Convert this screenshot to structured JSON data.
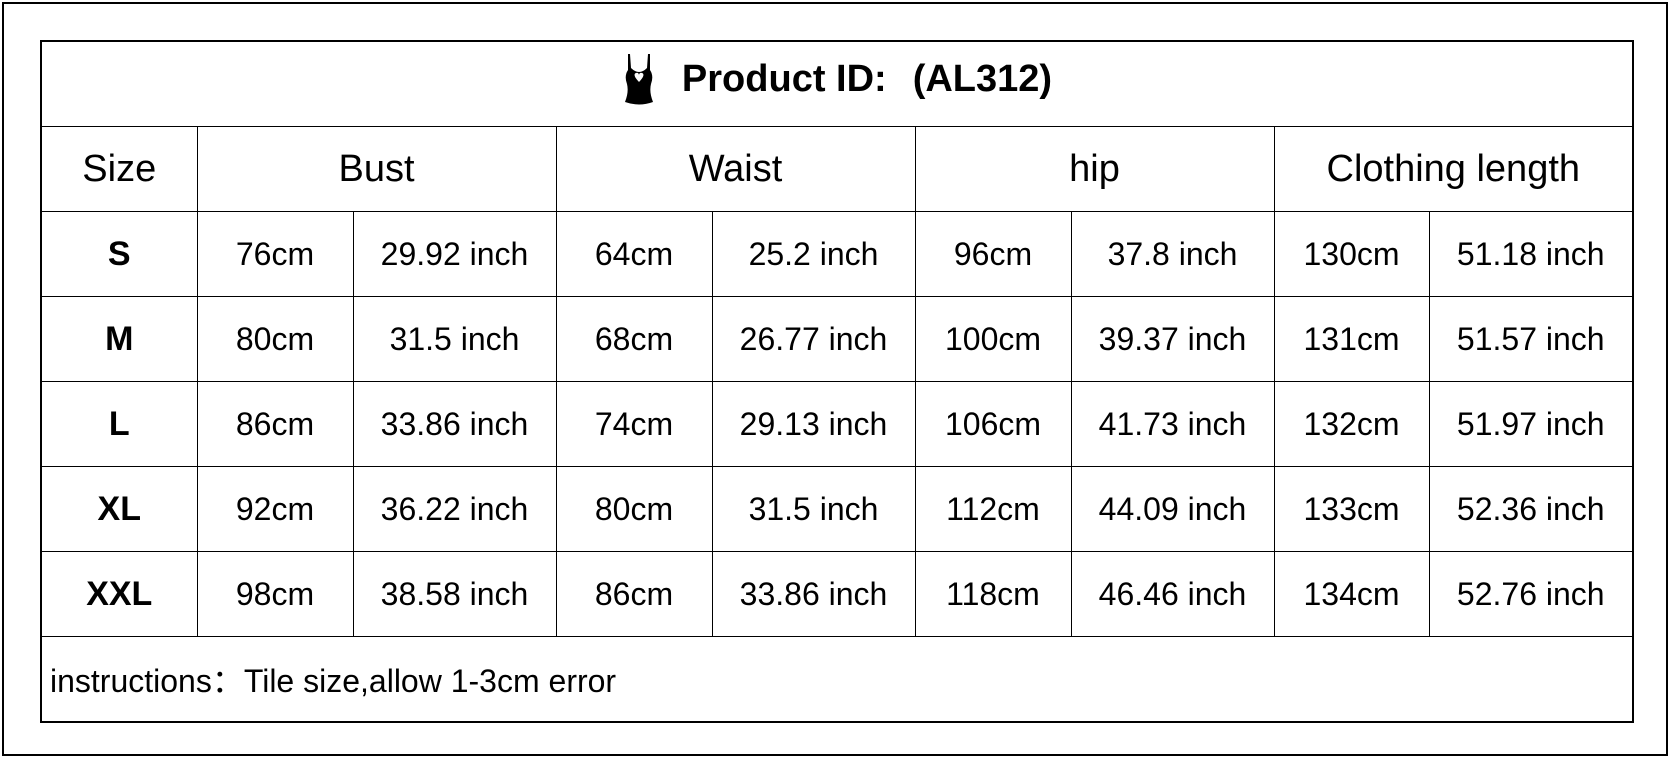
{
  "title": {
    "label": "Product ID:",
    "id": "(AL312)",
    "icon": "camisole-icon"
  },
  "headers": [
    "Size",
    "Bust",
    "Waist",
    "hip",
    "Clothing length"
  ],
  "rows": [
    {
      "size": "S",
      "bust_cm": "76cm",
      "bust_in": "29.92 inch",
      "waist_cm": "64cm",
      "waist_in": "25.2 inch",
      "hip_cm": "96cm",
      "hip_in": "37.8 inch",
      "len_cm": "130cm",
      "len_in": "51.18 inch"
    },
    {
      "size": "M",
      "bust_cm": "80cm",
      "bust_in": "31.5 inch",
      "waist_cm": "68cm",
      "waist_in": "26.77 inch",
      "hip_cm": "100cm",
      "hip_in": "39.37 inch",
      "len_cm": "131cm",
      "len_in": "51.57 inch"
    },
    {
      "size": "L",
      "bust_cm": "86cm",
      "bust_in": "33.86 inch",
      "waist_cm": "74cm",
      "waist_in": "29.13 inch",
      "hip_cm": "106cm",
      "hip_in": "41.73 inch",
      "len_cm": "132cm",
      "len_in": "51.97 inch"
    },
    {
      "size": "XL",
      "bust_cm": "92cm",
      "bust_in": "36.22 inch",
      "waist_cm": "80cm",
      "waist_in": "31.5 inch",
      "hip_cm": "112cm",
      "hip_in": "44.09 inch",
      "len_cm": "133cm",
      "len_in": "52.36 inch"
    },
    {
      "size": "XXL",
      "bust_cm": "98cm",
      "bust_in": "38.58 inch",
      "waist_cm": "86cm",
      "waist_in": "33.86 inch",
      "hip_cm": "118cm",
      "hip_in": "46.46 inch",
      "len_cm": "134cm",
      "len_in": "52.76 inch"
    }
  ],
  "note": "instructions：Tile size,allow 1-3cm error"
}
